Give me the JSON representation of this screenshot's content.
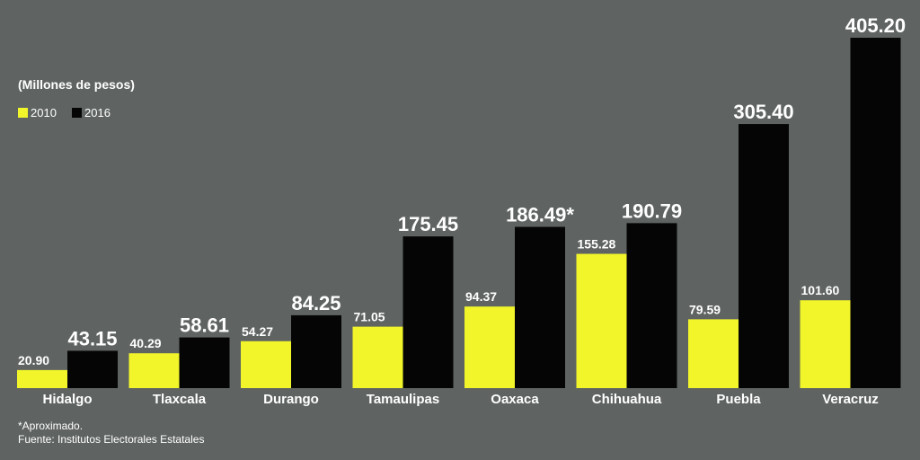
{
  "chart_data": {
    "type": "bar",
    "unit_label": "(Millones de pesos)",
    "categories": [
      "Hidalgo",
      "Tlaxcala",
      "Durango",
      "Tamaulipas",
      "Oaxaca",
      "Chihuahua",
      "Puebla",
      "Veracruz"
    ],
    "series": [
      {
        "name": "2010",
        "color": "#f2f52a",
        "values": [
          20.9,
          40.29,
          54.27,
          71.05,
          94.37,
          155.28,
          79.59,
          101.6
        ],
        "labels": [
          "20.90",
          "40.29",
          "54.27",
          "71.05",
          "94.37",
          "155.28",
          "79.59",
          "101.60"
        ]
      },
      {
        "name": "2016",
        "color": "#050505",
        "values": [
          43.15,
          58.61,
          84.25,
          175.45,
          186.49,
          190.79,
          305.4,
          405.2
        ],
        "labels": [
          "43.15",
          "58.61",
          "84.25",
          "175.45",
          "186.49*",
          "190.79",
          "305.40",
          "405.20"
        ]
      }
    ],
    "ylim": [
      0,
      405.2
    ],
    "grid": false,
    "legend_position": "top-left",
    "footnote": "*Aproximado.",
    "source": "Fuente: Institutos Electorales Estatales"
  }
}
